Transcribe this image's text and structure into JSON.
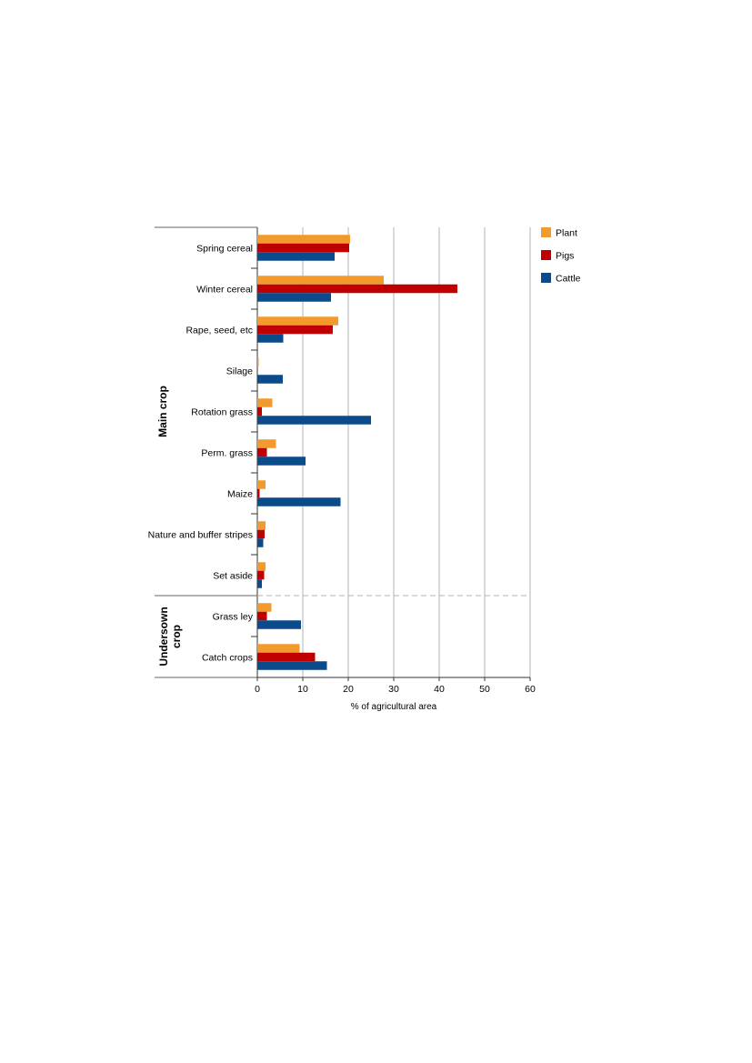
{
  "chart_data": {
    "type": "bar",
    "orientation": "horizontal",
    "title": "",
    "xlabel": "% of agricultural area",
    "ylabel": "",
    "xlim": [
      0,
      60
    ],
    "xticks": [
      0,
      10,
      20,
      30,
      40,
      50,
      60
    ],
    "grid": "vertical",
    "legend": "right",
    "categories": [
      "Spring cereal",
      "Winter cereal",
      "Rape, seed, etc",
      "Silage",
      "Rotation grass",
      "Perm. grass",
      "Maize",
      "Nature and buffer stripes",
      "Set aside",
      "Grass ley",
      "Catch crops"
    ],
    "groups": [
      {
        "label": "Main crop",
        "categories": [
          "Spring cereal",
          "Winter cereal",
          "Rape, seed, etc",
          "Silage",
          "Rotation grass",
          "Perm. grass",
          "Maize",
          "Nature and buffer stripes",
          "Set aside"
        ]
      },
      {
        "label": "Undersown crop",
        "categories": [
          "Grass ley",
          "Catch crops"
        ]
      }
    ],
    "series": [
      {
        "name": "Plant",
        "color": "#f39a2d",
        "values": [
          20.4,
          27.8,
          17.8,
          0.3,
          3.3,
          4.1,
          1.8,
          1.8,
          1.8,
          3.1,
          9.3
        ]
      },
      {
        "name": "Pigs",
        "color": "#c00000",
        "values": [
          20.2,
          44.0,
          16.6,
          0.0,
          1.0,
          2.1,
          0.5,
          1.6,
          1.5,
          2.1,
          12.7
        ]
      },
      {
        "name": "Cattle",
        "color": "#0b4a8b",
        "values": [
          17.0,
          16.2,
          5.7,
          5.6,
          25.0,
          10.6,
          18.3,
          1.3,
          1.0,
          9.6,
          15.3
        ]
      }
    ]
  }
}
